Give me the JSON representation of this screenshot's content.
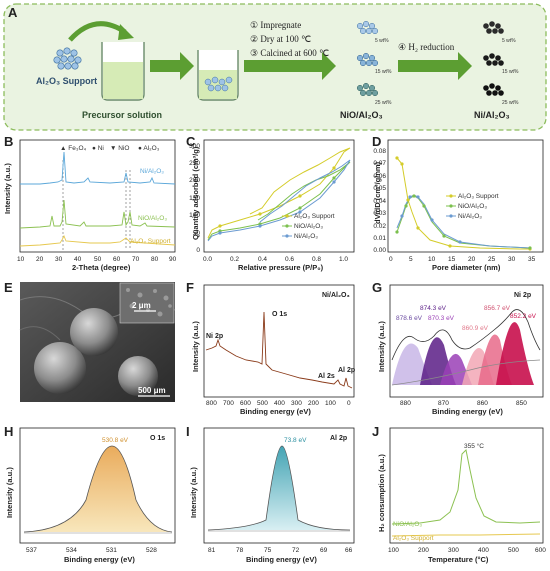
{
  "panels": {
    "A": {
      "label": "A",
      "support_label": "Al₂O₃ Support",
      "precursor_label": "Precursor solution",
      "steps": [
        "① Impregnate",
        "② Dry at 100 ℃",
        "③ Calcined at 600 ℃"
      ],
      "reduction_step": "④ H₂ reduction",
      "nio_label": "NiO/Al₂O₃",
      "ni_label": "Ni/Al₂O₃",
      "loadings": [
        "5 wt%",
        "15 wt%",
        "25 wt%"
      ]
    },
    "B": {
      "label": "B",
      "xlabel": "2-Theta (degree)",
      "ylabel": "Intensity (a.u.)",
      "xticks": [
        "10",
        "20",
        "30",
        "40",
        "50",
        "60",
        "70",
        "80",
        "90"
      ],
      "legend": [
        "▲ Fe₃O₄",
        "● Ni",
        "▼ NiO",
        "● Al₂O₃"
      ],
      "traces": [
        "Ni/Al₂O₃",
        "NiO/Al₂O₃",
        "Al₂O₃ Support"
      ],
      "colors": [
        "#5ba7d9",
        "#8cc152",
        "#e6c84f"
      ]
    },
    "C": {
      "label": "C",
      "xlabel": "Relative pressure (P/P₀)",
      "ylabel": "Quantity adsorbed (cm³/g)",
      "xticks": [
        "0.0",
        "0.2",
        "0.4",
        "0.6",
        "0.8",
        "1.0"
      ],
      "yticks": [
        "0",
        "50",
        "100",
        "150",
        "200",
        "250",
        "300"
      ],
      "legend": [
        "Al₂O₃ Support",
        "NiO/Al₂O₃",
        "Ni/Al₂O₃"
      ],
      "colors": [
        "#d4cc2a",
        "#7cc04e",
        "#6b9bd1"
      ]
    },
    "D": {
      "label": "D",
      "xlabel": "Pore diameter (nm)",
      "ylabel": "dV/dD (cm³/g/nm)",
      "xticks": [
        "0",
        "5",
        "10",
        "15",
        "20",
        "25",
        "30",
        "35"
      ],
      "yticks": [
        "0.00",
        "0.01",
        "0.02",
        "0.03",
        "0.04",
        "0.05",
        "0.06",
        "0.07",
        "0.08"
      ],
      "legend": [
        "Al₂O₃ Support",
        "NiO/Al₂O₃",
        "Ni/Al₂O₃"
      ],
      "colors": [
        "#d4cc2a",
        "#7cc04e",
        "#6b9bd1"
      ]
    },
    "E": {
      "label": "E",
      "inset_scale": "2 μm",
      "scale": "500 μm"
    },
    "F": {
      "label": "F",
      "title": "Ni/Al₂O₃",
      "xlabel": "Binding energy (eV)",
      "ylabel": "Intensity (a.u.)",
      "xticks": [
        "800",
        "700",
        "600",
        "500",
        "400",
        "300",
        "200",
        "100",
        "0"
      ],
      "peaks": [
        "O 1s",
        "Ni 2p",
        "Al 2s",
        "Al 2p"
      ]
    },
    "G": {
      "label": "G",
      "title": "Ni 2p",
      "xlabel": "Binding energy (eV)",
      "ylabel": "Intensity (a.u.)",
      "xticks": [
        "880",
        "870",
        "860",
        "850"
      ],
      "peaks": [
        "878.6 eV",
        "874.3 eV",
        "870.3 eV",
        "860.9 eV",
        "856.7 eV",
        "852.2 eV"
      ]
    },
    "H": {
      "label": "H",
      "title": "O 1s",
      "xlabel": "Binding energy (eV)",
      "ylabel": "Intensity (a.u.)",
      "xticks": [
        "537",
        "534",
        "531",
        "528"
      ],
      "peak": "530.8 eV"
    },
    "I": {
      "label": "I",
      "title": "Al 2p",
      "xlabel": "Binding energy (eV)",
      "ylabel": "Intensity (a.u.)",
      "xticks": [
        "81",
        "78",
        "75",
        "72",
        "69",
        "66"
      ],
      "peak": "73.8 eV"
    },
    "J": {
      "label": "J",
      "xlabel": "Temperature (°C)",
      "ylabel": "H₂ consumption (a.u.)",
      "xticks": [
        "100",
        "200",
        "300",
        "400",
        "500",
        "600"
      ],
      "peak": "355 °C",
      "traces": [
        "NiO/Al₂O₃",
        "Al₂O₃ Support"
      ],
      "colors": [
        "#8cc152",
        "#e6c84f"
      ]
    }
  }
}
